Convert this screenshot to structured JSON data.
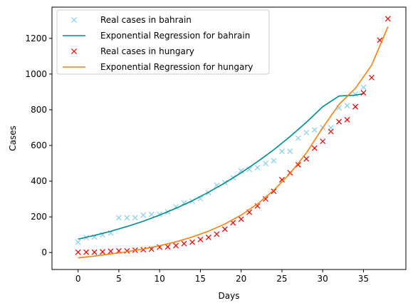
{
  "chart_data": {
    "type": "scatter",
    "xlabel": "Days",
    "ylabel": "Cases",
    "xlim": [
      -3.2,
      40.2
    ],
    "ylim": [
      -95,
      1375
    ],
    "xticks": [
      0,
      5,
      10,
      15,
      20,
      25,
      30,
      35
    ],
    "yticks": [
      0,
      200,
      400,
      600,
      800,
      1000,
      1200
    ],
    "legend_position": "top-left",
    "series": [
      {
        "name": "Real cases in bahrain",
        "kind": "points",
        "marker": "x",
        "color": "#87ceeb",
        "x": [
          0,
          1,
          2,
          3,
          4,
          5,
          6,
          7,
          8,
          9,
          10,
          11,
          12,
          13,
          14,
          15,
          16,
          17,
          18,
          19,
          20,
          21,
          22,
          23,
          24,
          25,
          26,
          27,
          28,
          29,
          30,
          31,
          32,
          33,
          34,
          35
        ],
        "y": [
          58,
          84,
          87,
          100,
          110,
          195,
          195,
          195,
          210,
          214,
          214,
          228,
          256,
          278,
          288,
          302,
          335,
          377,
          392,
          419,
          458,
          466,
          476,
          499,
          515,
          567,
          567,
          641,
          672,
          687,
          700,
          699,
          811,
          823,
          887,
          925
        ]
      },
      {
        "name": "Exponential Regression for bahrain",
        "kind": "line",
        "color": "#008b8b",
        "x": [
          0,
          2,
          4,
          6,
          8,
          10,
          12,
          14,
          16,
          18,
          20,
          22,
          24,
          26,
          28,
          30,
          32,
          34,
          35
        ],
        "y": [
          75,
          96,
          119,
          146,
          176,
          210,
          248,
          290,
          338,
          390,
          447,
          509,
          576,
          650,
          730,
          817,
          877,
          882,
          890
        ]
      },
      {
        "name": "Real cases in hungary",
        "kind": "points",
        "marker": "x",
        "color": "#dd0000",
        "x": [
          0,
          1,
          2,
          3,
          4,
          5,
          6,
          7,
          8,
          9,
          10,
          11,
          12,
          13,
          14,
          15,
          16,
          17,
          18,
          19,
          20,
          21,
          22,
          23,
          24,
          25,
          26,
          27,
          28,
          29,
          30,
          31,
          32,
          33,
          34,
          35,
          36,
          37,
          38
        ],
        "y": [
          2,
          2,
          2,
          4,
          7,
          9,
          9,
          13,
          16,
          19,
          30,
          32,
          39,
          50,
          58,
          73,
          85,
          103,
          131,
          167,
          187,
          226,
          261,
          300,
          343,
          408,
          447,
          492,
          525,
          585,
          623,
          678,
          733,
          744,
          817,
          895,
          980,
          1190,
          1310
        ]
      },
      {
        "name": "Exponential Regression for hungary",
        "kind": "line",
        "color": "#ff7f0e",
        "x": [
          0,
          2,
          4,
          6,
          8,
          10,
          12,
          14,
          16,
          18,
          20,
          22,
          24,
          26,
          28,
          30,
          32,
          34,
          36,
          38
        ],
        "y": [
          -30,
          -20,
          -8,
          5,
          20,
          38,
          60,
          87,
          120,
          160,
          210,
          272,
          349,
          443,
          558,
          699,
          830,
          920,
          1050,
          1265
        ]
      }
    ]
  }
}
